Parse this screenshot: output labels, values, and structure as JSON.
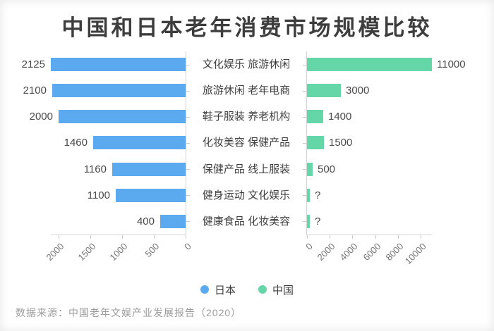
{
  "title": "中国和日本老年消费市场规模比较",
  "source_note": "数据来源：中国老年文娱产业发展报告（2020）",
  "colors": {
    "japan": "#5baaf0",
    "china": "#65d6a8",
    "axis": "#d4d4d4"
  },
  "chart_data": {
    "type": "bar",
    "orientation": "horizontal-diverging",
    "title": "中国和日本老年消费市场规模比较",
    "categories": [
      "文化娱乐 旅游休闲",
      "旅游休闲 老年电商",
      "鞋子服装 养老机构",
      "化妆美容 保健产品",
      "保健产品 线上服装",
      "健身运动 文化娱乐",
      "健康食品 化妆美容"
    ],
    "series": [
      {
        "name": "日本",
        "side": "left",
        "color": "#5baaf0",
        "values": [
          2125,
          2100,
          2000,
          1460,
          1160,
          1100,
          400
        ],
        "labels": [
          "2125",
          "2100",
          "2000",
          "1460",
          "1160",
          "1100",
          "400"
        ],
        "axis_max": 2125,
        "axis_ticks": [
          2000,
          1500,
          1000,
          500,
          0
        ],
        "axis_reversed": true
      },
      {
        "name": "中国",
        "side": "right",
        "color": "#65d6a8",
        "values": [
          11000,
          3000,
          1400,
          1500,
          500,
          null,
          null
        ],
        "labels": [
          "11000",
          "3000",
          "1400",
          "1500",
          "500",
          "?",
          "?"
        ],
        "axis_max": 11000,
        "axis_ticks": [
          0,
          2000,
          4000,
          6000,
          8000,
          10000
        ],
        "axis_reversed": false
      }
    ],
    "legend_position": "bottom-center",
    "grid": false,
    "source": "数据来源：中国老年文娱产业发展报告（2020）"
  }
}
